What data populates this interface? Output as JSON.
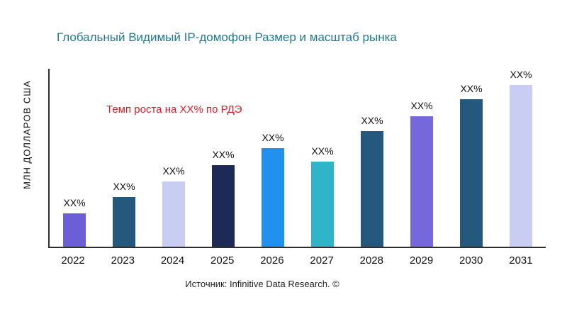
{
  "chart_data": {
    "type": "bar",
    "title": "Глобальный Видимый IP-домофон Размер и масштаб рынка",
    "ylabel": "МЛН ДОЛЛАРОВ США",
    "annotation": "Темп роста на XX% по РДЭ",
    "source": "Источник: Infinitive Data Research. ©",
    "categories": [
      "2022",
      "2023",
      "2024",
      "2025",
      "2026",
      "2027",
      "2028",
      "2029",
      "2030",
      "2031"
    ],
    "values": [
      47,
      70,
      92,
      115,
      138,
      120,
      162,
      183,
      207,
      229
    ],
    "bar_labels": [
      "XX%",
      "XX%",
      "XX%",
      "XX%",
      "XX%",
      "XX%",
      "XX%",
      "XX%",
      "XX%",
      "XX%"
    ],
    "bar_colors": [
      "#6b5ed6",
      "#24587c",
      "#c9cdf2",
      "#1e2a56",
      "#2191f0",
      "#2fb4c9",
      "#24587c",
      "#7767dd",
      "#24587c",
      "#c9cdf2"
    ],
    "ylim": [
      0,
      250
    ],
    "grid": false,
    "legend": "none"
  },
  "colors": {
    "title": "#1d7a8c",
    "annotation": "#e01b24",
    "axis": "#2e2e2e",
    "text": "#111111",
    "background": "#ffffff"
  }
}
